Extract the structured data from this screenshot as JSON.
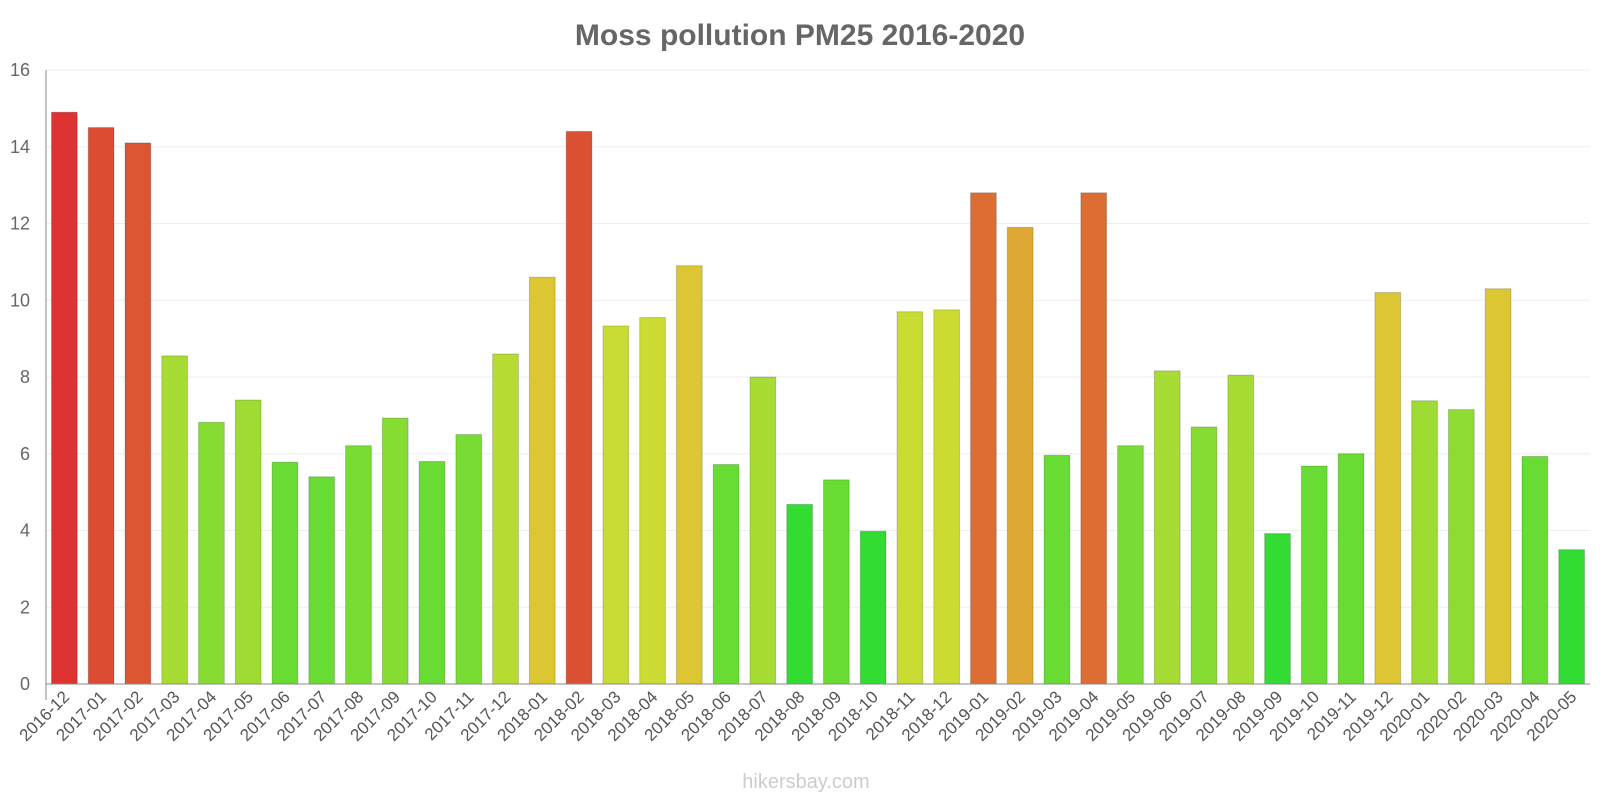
{
  "chart_data": {
    "type": "bar",
    "title": "Moss pollution PM25 2016-2020",
    "xlabel": "",
    "ylabel": "",
    "ylim": [
      0,
      16
    ],
    "yticks": [
      "0",
      "2",
      "4",
      "6",
      "8",
      "10",
      "12",
      "14",
      "16"
    ],
    "grid": true,
    "legend": "none",
    "categories": [
      "2016-12",
      "2017-01",
      "2017-02",
      "2017-03",
      "2017-04",
      "2017-05",
      "2017-06",
      "2017-07",
      "2017-08",
      "2017-09",
      "2017-10",
      "2017-11",
      "2017-12",
      "2018-01",
      "2018-02",
      "2018-03",
      "2018-04",
      "2018-05",
      "2018-06",
      "2018-07",
      "2018-08",
      "2018-09",
      "2018-10",
      "2018-11",
      "2018-12",
      "2019-01",
      "2019-02",
      "2019-03",
      "2019-04",
      "2019-05",
      "2019-06",
      "2019-07",
      "2019-08",
      "2019-09",
      "2019-10",
      "2019-11",
      "2019-12",
      "2020-01",
      "2020-02",
      "2020-03",
      "2020-04",
      "2020-05"
    ],
    "values": [
      14.9,
      14.5,
      14.1,
      8.55,
      6.82,
      7.4,
      5.78,
      5.4,
      6.21,
      6.93,
      5.8,
      6.5,
      8.6,
      10.6,
      14.4,
      9.33,
      9.55,
      10.9,
      5.72,
      8.0,
      4.68,
      5.32,
      3.98,
      9.7,
      9.75,
      12.8,
      11.9,
      5.96,
      12.8,
      6.21,
      8.16,
      6.7,
      8.05,
      3.92,
      5.68,
      6.0,
      10.2,
      7.38,
      7.15,
      10.3,
      5.93,
      3.5
    ],
    "colors": [
      "#dd3333",
      "#dc4c33",
      "#dc5633",
      "#a6dc33",
      "#86dc33",
      "#9edc33",
      "#68dc33",
      "#68dc33",
      "#78dc33",
      "#86dc33",
      "#68dc33",
      "#78dc33",
      "#b6dc33",
      "#dcc633",
      "#dc5033",
      "#c8dc33",
      "#ccdc33",
      "#dcc633",
      "#68dc33",
      "#a6dc33",
      "#33dc33",
      "#68dc33",
      "#33dc33",
      "#c8dc33",
      "#ccdc33",
      "#dc6e33",
      "#dca833",
      "#68dc33",
      "#dc6e33",
      "#78dc33",
      "#a6dc33",
      "#86dc33",
      "#a6dc33",
      "#33dc33",
      "#68dc33",
      "#68dc33",
      "#dcc633",
      "#9edc33",
      "#8edc33",
      "#dcc633",
      "#68dc33",
      "#33dc33"
    ],
    "credit": "hikersbay.com"
  }
}
